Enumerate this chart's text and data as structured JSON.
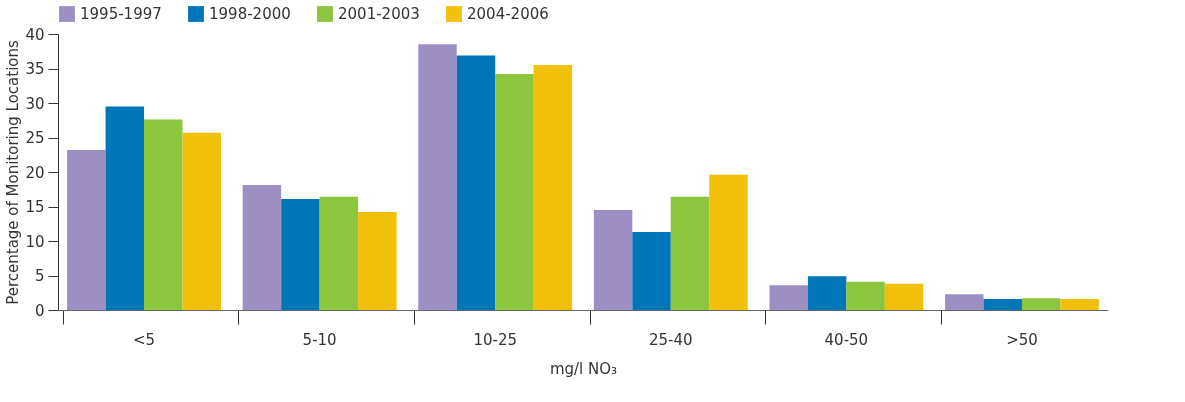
{
  "chart_data": {
    "type": "bar",
    "xlabel": "mg/l NO₃",
    "ylabel": "Percentage of Monitoring Locations",
    "categories": [
      "<5",
      "5-10",
      "10-25",
      "25-40",
      "40-50",
      ">50"
    ],
    "series": [
      {
        "name": "1995-1997",
        "color": "#9d8fc4",
        "values": [
          23.2,
          18.1,
          38.5,
          14.5,
          3.6,
          2.3
        ]
      },
      {
        "name": "1998-2000",
        "color": "#0076b9",
        "values": [
          29.5,
          16.1,
          36.9,
          11.3,
          4.9,
          1.6
        ]
      },
      {
        "name": "2001-2003",
        "color": "#8cc63f",
        "values": [
          27.6,
          16.4,
          34.2,
          16.4,
          4.1,
          1.7
        ]
      },
      {
        "name": "2004-2006",
        "color": "#f0c00a",
        "values": [
          25.7,
          14.2,
          35.5,
          19.6,
          3.8,
          1.6
        ]
      }
    ],
    "ylim": [
      0,
      40
    ],
    "yticks": [
      0,
      5,
      10,
      15,
      20,
      25,
      30,
      35,
      40
    ],
    "grid": false,
    "legend": "top left"
  }
}
